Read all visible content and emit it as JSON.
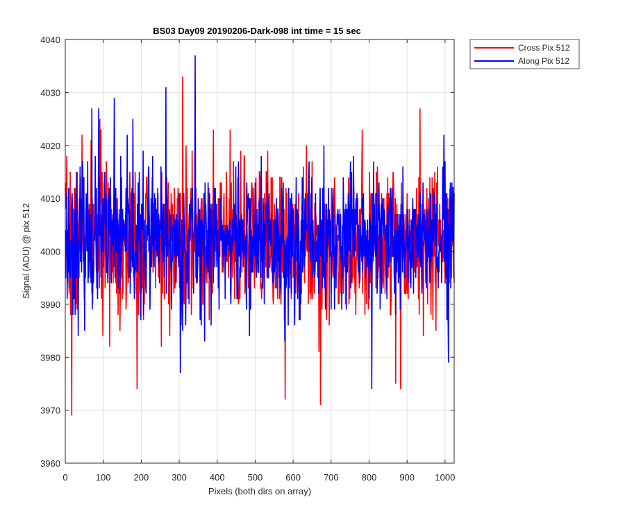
{
  "chart_data": {
    "type": "line",
    "title": "BS03 Day09 20190206-Dark-098 int time = 15 sec",
    "xlabel": "Pixels (both dirs on array)",
    "ylabel": "Signal (ADU) @ pix 512",
    "xlim": [
      0,
      1024
    ],
    "ylim": [
      3960,
      4040
    ],
    "xticks": [
      0,
      100,
      200,
      300,
      400,
      500,
      600,
      700,
      800,
      900,
      1000
    ],
    "yticks": [
      3960,
      3970,
      3980,
      3990,
      4000,
      4010,
      4020,
      4030,
      4040
    ],
    "grid": true,
    "legend_position": "outside-top-right",
    "series": [
      {
        "name": "Cross Pix 512",
        "color": "#ff0000",
        "x_start": 0,
        "x_end": 1024,
        "noise_center": 4002,
        "noise_std": 7,
        "seed": 7,
        "extremes": [
          {
            "x": 17,
            "y": 3969
          },
          {
            "x": 189,
            "y": 3974
          },
          {
            "x": 309,
            "y": 4033
          },
          {
            "x": 579,
            "y": 3972
          },
          {
            "x": 672,
            "y": 3971
          },
          {
            "x": 870,
            "y": 3975
          },
          {
            "x": 883,
            "y": 3974
          },
          {
            "x": 934,
            "y": 4027
          },
          {
            "x": 91,
            "y": 4025
          },
          {
            "x": 44,
            "y": 4022
          }
        ]
      },
      {
        "name": "Along Pix 512",
        "color": "#0000ff",
        "x_start": 0,
        "x_end": 1024,
        "noise_center": 4002,
        "noise_std": 6.5,
        "seed": 23,
        "extremes": [
          {
            "x": 342,
            "y": 4037
          },
          {
            "x": 265,
            "y": 4031
          },
          {
            "x": 129,
            "y": 4029
          },
          {
            "x": 70,
            "y": 4027
          },
          {
            "x": 88,
            "y": 4027
          },
          {
            "x": 303,
            "y": 3977
          },
          {
            "x": 807,
            "y": 3974
          },
          {
            "x": 1009,
            "y": 3979
          },
          {
            "x": 178,
            "y": 4025
          }
        ]
      }
    ]
  }
}
